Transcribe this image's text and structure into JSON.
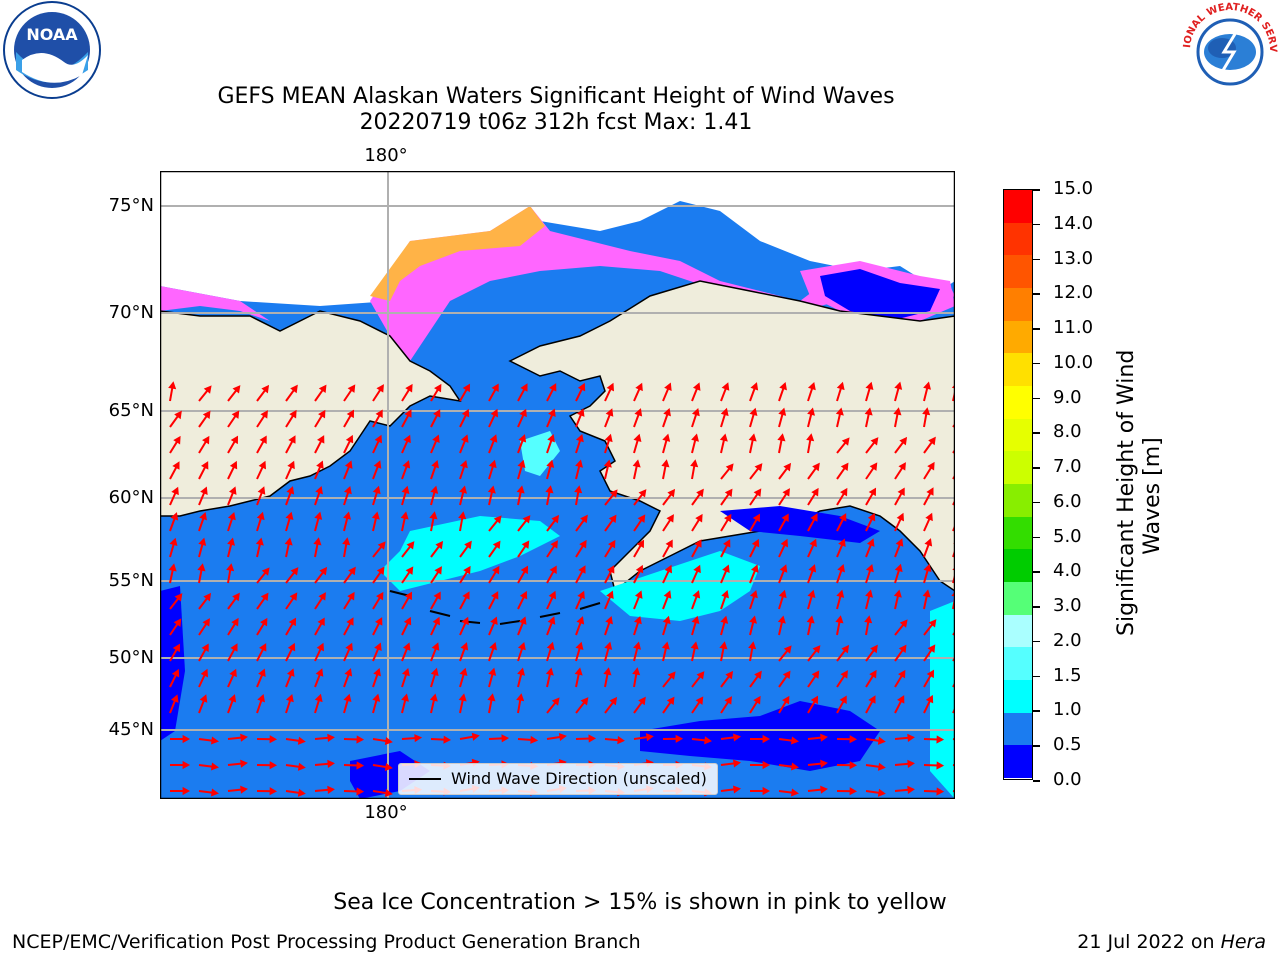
{
  "title": {
    "line1": "GEFS MEAN Alaskan Waters Significant Height of Wind Waves",
    "line2": "20220719 t06z 312h fcst    Max: 1.41"
  },
  "logos": {
    "left": {
      "text": "NOAA",
      "icon": "noaa-logo"
    },
    "right": {
      "text": "NATIONAL WEATHER SERVICE",
      "icon": "nws-logo"
    }
  },
  "map": {
    "lat_labels": [
      "75°N",
      "70°N",
      "65°N",
      "60°N",
      "55°N",
      "50°N",
      "45°N"
    ],
    "lon_label_top": "180°",
    "lon_label_bottom": "180°",
    "legend_label": "Wind Wave Direction (unscaled)",
    "colors": {
      "land": "#efeddc",
      "ocean_low": "#0000ff",
      "ocean_mid": "#1b7cf0",
      "ocean_high": "#00ffff",
      "ice_pink": "#ff66ff",
      "ice_orange": "#ffb347",
      "arrow": "#ff0000",
      "grid": "#b0b0b0"
    }
  },
  "colorbar": {
    "title_line1": "Significant Height of Wind",
    "title_line2": "Waves [m]",
    "ticks": [
      "15.0",
      "14.0",
      "13.0",
      "12.0",
      "11.0",
      "10.0",
      "9.0",
      "8.0",
      "7.0",
      "6.0",
      "5.0",
      "4.0",
      "3.0",
      "2.0",
      "1.5",
      "1.0",
      "0.5",
      "0.0"
    ],
    "colors": [
      "#ff0000",
      "#ff3300",
      "#ff5500",
      "#ff7f00",
      "#ffaa00",
      "#ffe000",
      "#ffff00",
      "#e6ff00",
      "#ccff00",
      "#88ee00",
      "#33dd00",
      "#00cc00",
      "#55ff77",
      "#aaffff",
      "#55ffff",
      "#00ffff",
      "#1b7cf0",
      "#0000ff"
    ]
  },
  "note": "Sea Ice Concentration > 15% is shown in pink to yellow",
  "footer": {
    "left": "NCEP/EMC/Verification Post Processing Product Generation Branch",
    "right_date": "21 Jul 2022 on ",
    "right_host": "Hera"
  }
}
